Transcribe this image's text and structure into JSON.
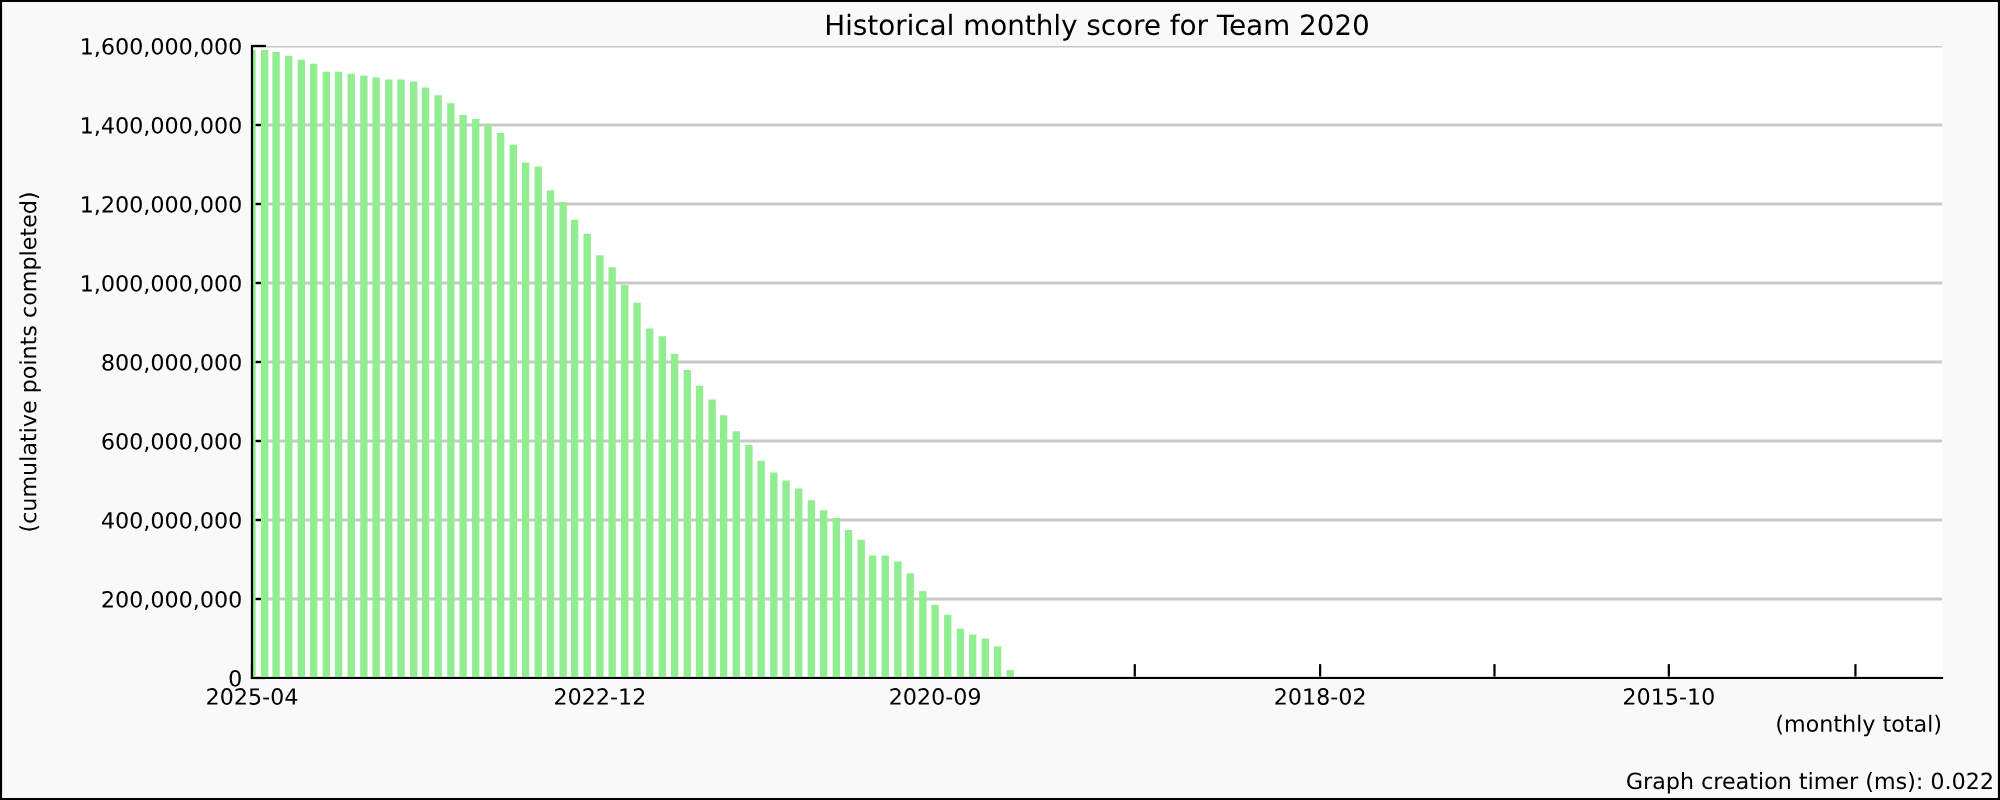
{
  "chart_data": {
    "type": "bar",
    "title": "Historical monthly score for Team 2020",
    "xlabel": "(monthly total)",
    "ylabel": "(cumulative points completed)",
    "annotations": [
      "Graph creation timer (ms): 0.022"
    ],
    "x": [
      "2025-04",
      "2025-03",
      "2025-02",
      "2025-01",
      "2024-12",
      "2024-11",
      "2024-10",
      "2024-09",
      "2024-08",
      "2024-07",
      "2024-06",
      "2024-05",
      "2024-04",
      "2024-03",
      "2024-02",
      "2024-01",
      "2023-12",
      "2023-11",
      "2023-10",
      "2023-09",
      "2023-08",
      "2023-07",
      "2023-06",
      "2023-05",
      "2023-04",
      "2023-03",
      "2023-02",
      "2023-01",
      "2022-12",
      "2022-11",
      "2022-10",
      "2022-09",
      "2022-08",
      "2022-07",
      "2022-06",
      "2022-05",
      "2022-04",
      "2022-03",
      "2022-02",
      "2022-01",
      "2021-12",
      "2021-11",
      "2021-10",
      "2021-09",
      "2021-08",
      "2021-07",
      "2021-06",
      "2021-05",
      "2021-04",
      "2021-03",
      "2021-02",
      "2021-01",
      "2020-12",
      "2020-11",
      "2020-10",
      "2020-09",
      "2020-08",
      "2020-07",
      "2020-06",
      "2020-05",
      "2020-04",
      "2020-03"
    ],
    "values": [
      1590000000,
      1590000000,
      1585000000,
      1575000000,
      1565000000,
      1555000000,
      1535000000,
      1535000000,
      1530000000,
      1525000000,
      1520000000,
      1515000000,
      1515000000,
      1510000000,
      1495000000,
      1475000000,
      1455000000,
      1425000000,
      1415000000,
      1400000000,
      1380000000,
      1350000000,
      1305000000,
      1295000000,
      1235000000,
      1205000000,
      1160000000,
      1125000000,
      1070000000,
      1040000000,
      995000000,
      950000000,
      885000000,
      865000000,
      820000000,
      780000000,
      740000000,
      705000000,
      665000000,
      625000000,
      590000000,
      550000000,
      520000000,
      500000000,
      480000000,
      450000000,
      425000000,
      405000000,
      375000000,
      350000000,
      310000000,
      310000000,
      295000000,
      265000000,
      220000000,
      185000000,
      160000000,
      125000000,
      110000000,
      100000000,
      80000000,
      20000000
    ],
    "color": "#90ee90",
    "xlim": [
      "2025-04",
      "2013-12"
    ],
    "xticks": [
      {
        "value": "2025-04",
        "label": "2025-04"
      },
      {
        "value": "2024-02",
        "label": null
      },
      {
        "value": "2022-12",
        "label": "2022-12"
      },
      {
        "value": "2021-10",
        "label": null
      },
      {
        "value": "2020-09",
        "label": "2020-09"
      },
      {
        "value": "2019-05",
        "label": null
      },
      {
        "value": "2018-02",
        "label": "2018-02"
      },
      {
        "value": "2016-12",
        "label": null
      },
      {
        "value": "2015-10",
        "label": "2015-10"
      },
      {
        "value": "2014-07",
        "label": null
      }
    ],
    "ylim": [
      0,
      1600000000
    ],
    "yticks": [
      {
        "value": 0,
        "label": "0"
      },
      {
        "value": 200000000,
        "label": "200,000,000"
      },
      {
        "value": 400000000,
        "label": "400,000,000"
      },
      {
        "value": 600000000,
        "label": "600,000,000"
      },
      {
        "value": 800000000,
        "label": "800,000,000"
      },
      {
        "value": 1000000000,
        "label": "1,000,000,000"
      },
      {
        "value": 1200000000,
        "label": "1,200,000,000"
      },
      {
        "value": 1400000000,
        "label": "1,400,000,000"
      },
      {
        "value": 1600000000,
        "label": "1,600,000,000"
      }
    ],
    "grid": "y"
  }
}
